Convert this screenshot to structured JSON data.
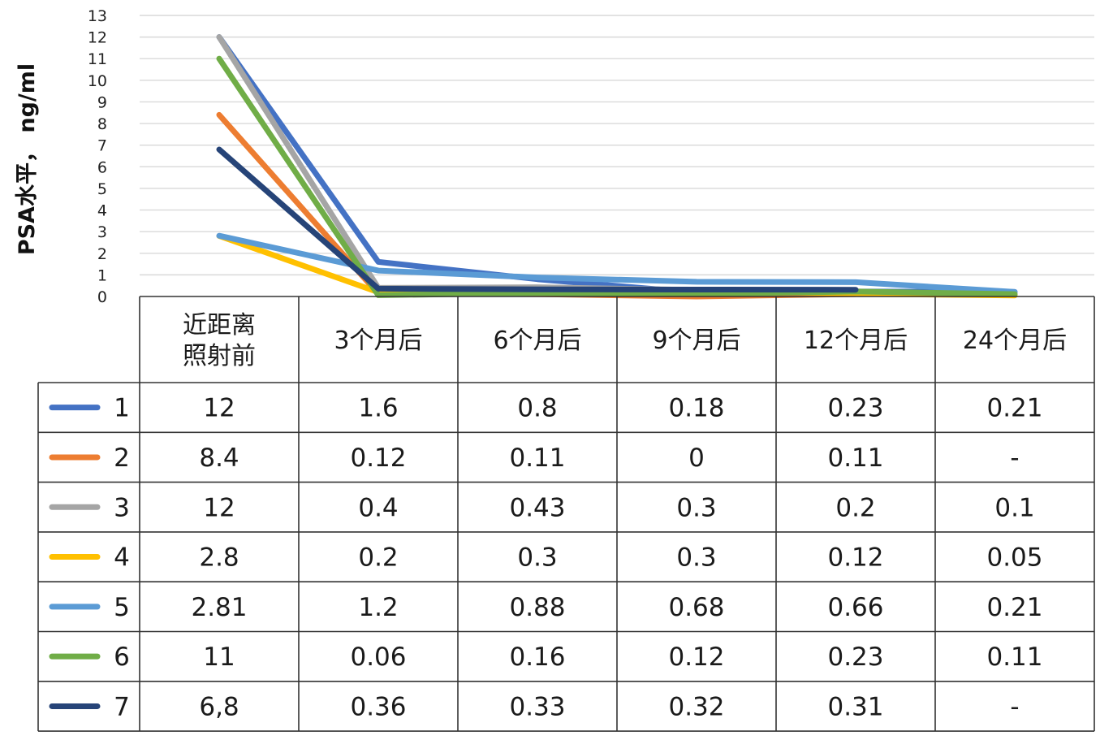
{
  "chart_data": {
    "type": "line",
    "ylabel": "PSA水平， ng/ml",
    "ylim": [
      0,
      13
    ],
    "yticks": [
      0,
      1,
      2,
      3,
      4,
      5,
      6,
      7,
      8,
      9,
      10,
      11,
      12,
      13
    ],
    "grid": true,
    "legend_placement": "data-table-left",
    "categories": [
      "近距离照射前",
      "3个月后",
      "6个月后",
      "9个月后",
      "12个月后",
      "24个月后"
    ],
    "series": [
      {
        "name": "1",
        "color": "#4472c4",
        "values": [
          12,
          1.6,
          0.8,
          0.18,
          0.23,
          0.21
        ],
        "labels": [
          "12",
          "1.6",
          "0.8",
          "0.18",
          "0.23",
          "0.21"
        ]
      },
      {
        "name": "2",
        "color": "#ed7d31",
        "values": [
          8.4,
          0.12,
          0.11,
          0,
          0.11,
          null
        ],
        "labels": [
          "8.4",
          "0.12",
          "0.11",
          "0",
          "0.11",
          "-"
        ]
      },
      {
        "name": "3",
        "color": "#a5a5a5",
        "values": [
          12,
          0.4,
          0.43,
          0.3,
          0.2,
          0.1
        ],
        "labels": [
          "12",
          "0.4",
          "0.43",
          "0.3",
          "0.2",
          "0.1"
        ]
      },
      {
        "name": "4",
        "color": "#ffc000",
        "values": [
          2.8,
          0.2,
          0.3,
          0.3,
          0.12,
          0.05
        ],
        "labels": [
          "2.8",
          "0.2",
          "0.3",
          "0.3",
          "0.12",
          "0.05"
        ]
      },
      {
        "name": "5",
        "color": "#5b9bd5",
        "values": [
          2.81,
          1.2,
          0.88,
          0.68,
          0.66,
          0.21
        ],
        "labels": [
          "2.81",
          "1.2",
          "0.88",
          "0.68",
          "0.66",
          "0.21"
        ]
      },
      {
        "name": "6",
        "color": "#70ad47",
        "values": [
          11,
          0.06,
          0.16,
          0.12,
          0.23,
          0.11
        ],
        "labels": [
          "11",
          "0.06",
          "0.16",
          "0.12",
          "0.23",
          "0.11"
        ]
      },
      {
        "name": "7",
        "color": "#264478",
        "values": [
          6.8,
          0.36,
          0.33,
          0.32,
          0.31,
          null
        ],
        "labels": [
          "6,8",
          "0.36",
          "0.33",
          "0.32",
          "0.31",
          "-"
        ]
      }
    ]
  }
}
